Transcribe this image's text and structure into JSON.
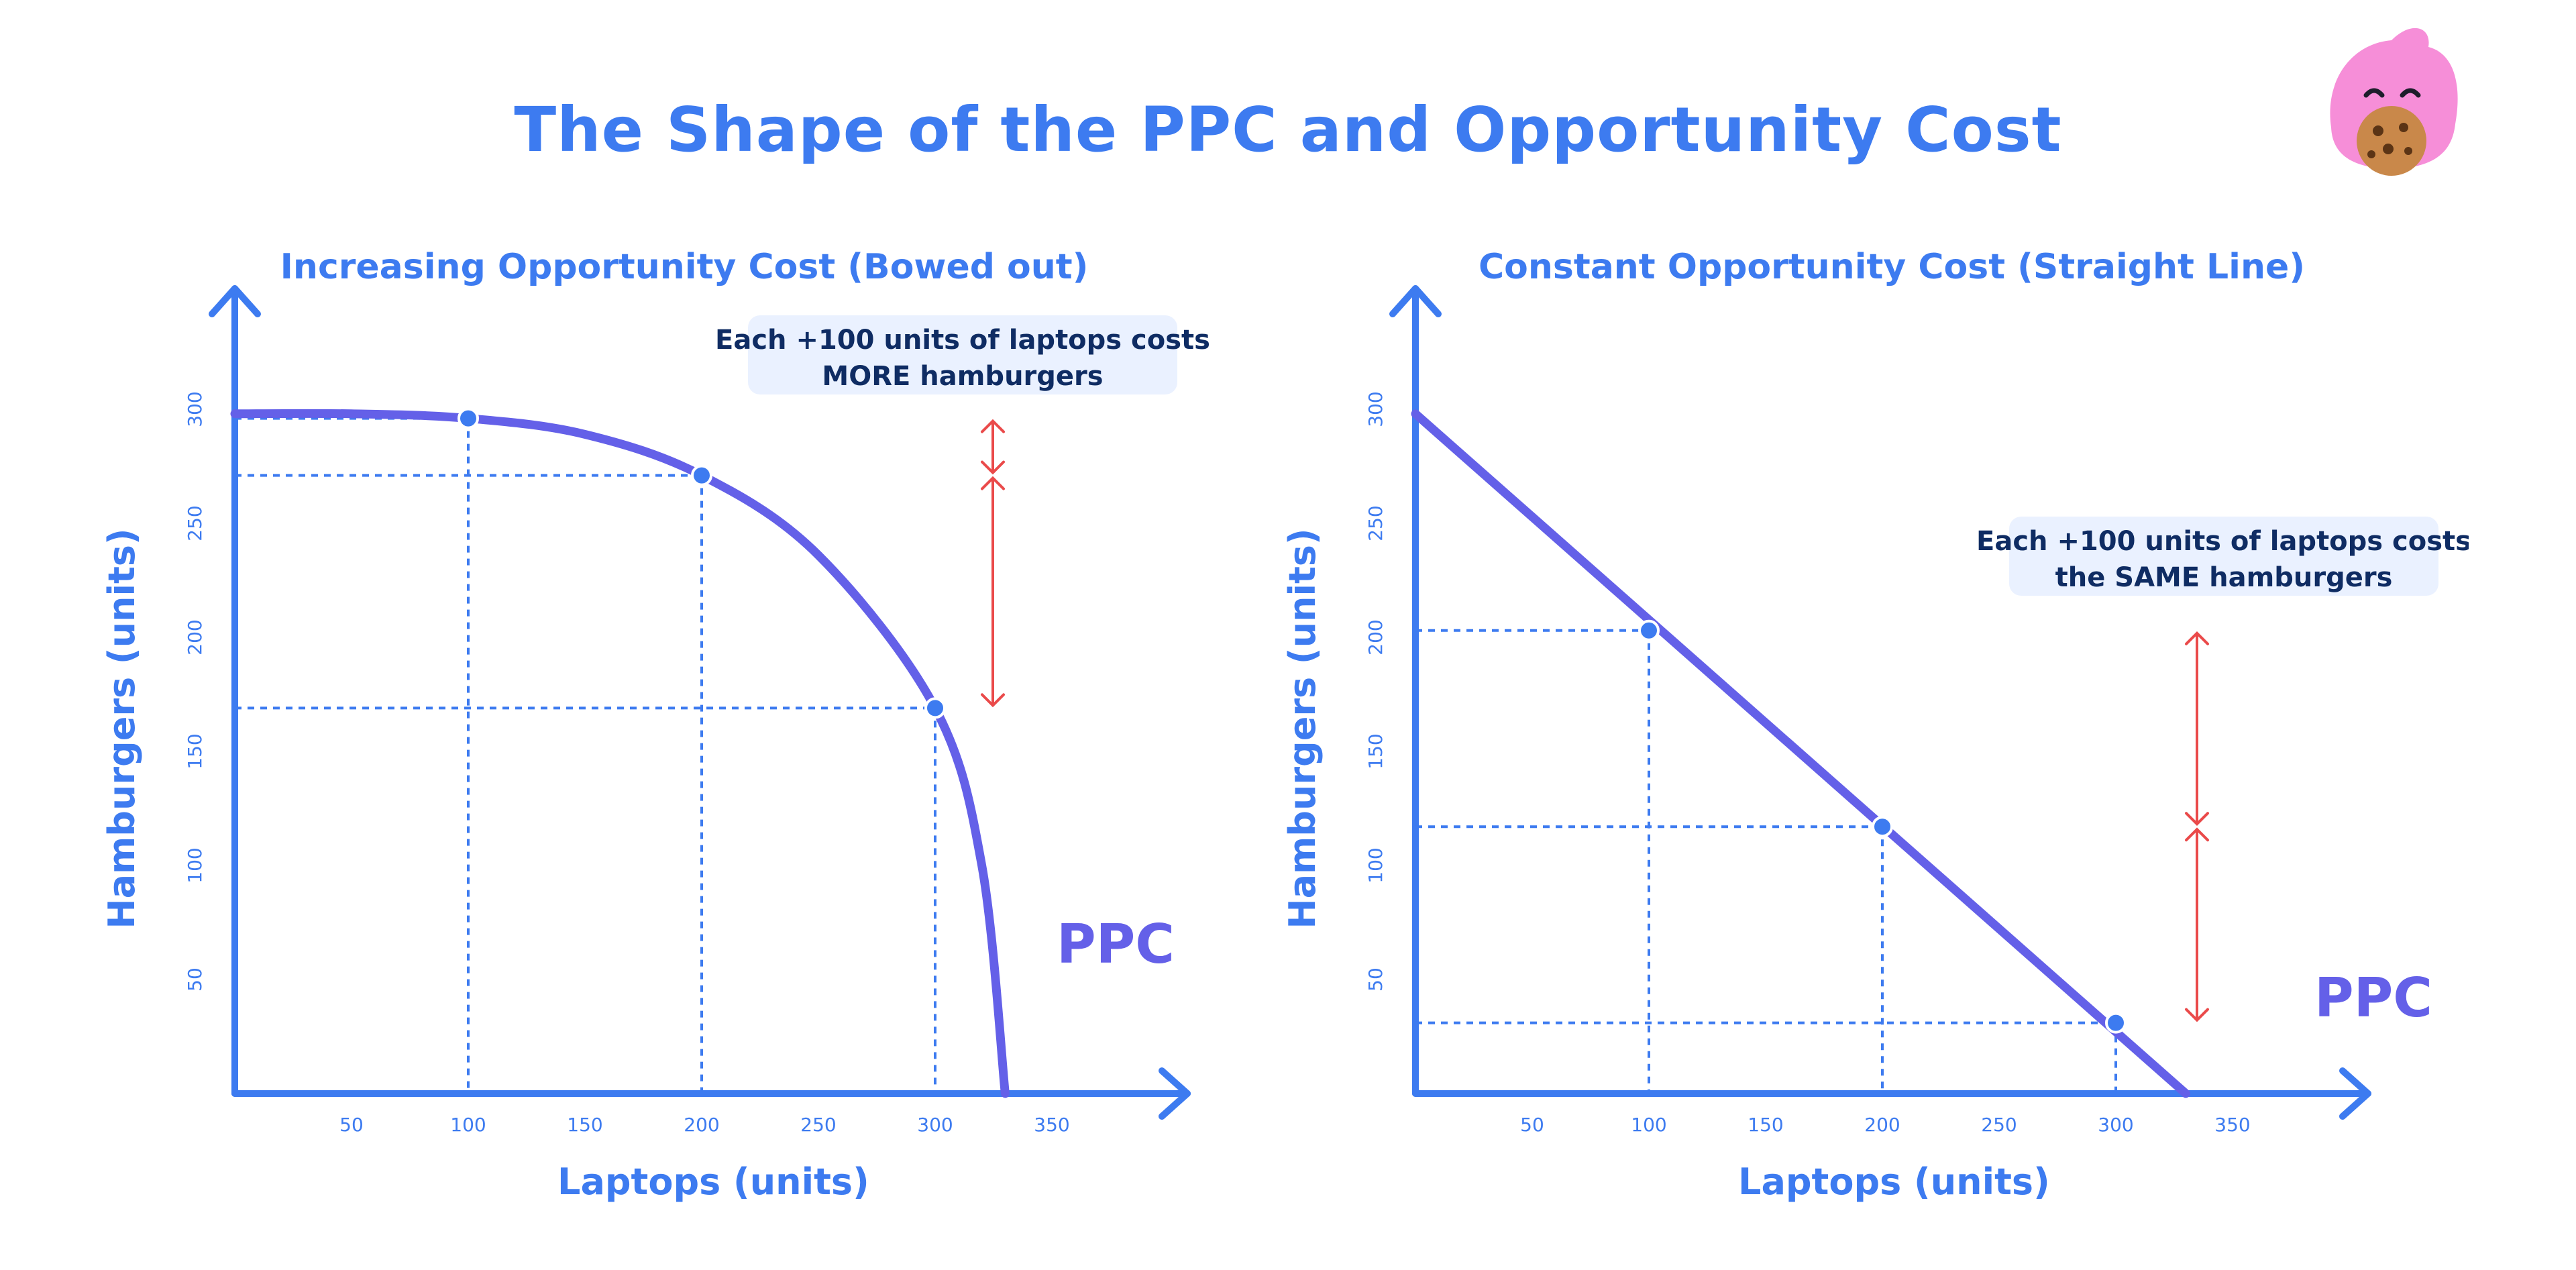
{
  "title": "The Shape of the PPC and Opportunity Cost",
  "colors": {
    "axis": "#3d7bf0",
    "curve": "#6460e8",
    "guide": "#3d7bf0",
    "arrow": "#ea4a4a",
    "annotation_text": "#0f2c63",
    "annotation_bg": "#eaf1ff",
    "mascot_pink": "#f68ed8",
    "cookie": "#c9884a"
  },
  "mascot": {
    "icon": "pink-mascot-eating-cookie"
  },
  "chart_data": [
    {
      "type": "line",
      "title": "Increasing Opportunity Cost (Bowed out)",
      "xlabel": "Laptops (units)",
      "ylabel": "Hamburgers (units)",
      "xlim": [
        0,
        400
      ],
      "ylim": [
        0,
        350
      ],
      "xticks": [
        50,
        100,
        150,
        200,
        250,
        300,
        350
      ],
      "yticks": [
        50,
        100,
        150,
        200,
        250,
        300
      ],
      "grid": false,
      "series": [
        {
          "name": "PPC",
          "x": [
            0,
            50,
            100,
            150,
            200,
            250,
            300,
            320,
            330
          ],
          "y": [
            298,
            298,
            296,
            289,
            271,
            236,
            169,
            100,
            0
          ]
        }
      ],
      "points": [
        {
          "x": 100,
          "y": 296
        },
        {
          "x": 200,
          "y": 271
        },
        {
          "x": 300,
          "y": 169
        }
      ],
      "annotation": {
        "line1": "Each +100 units of laptops costs",
        "line2_bold": "MORE",
        "line2_rest": " hamburgers"
      },
      "cost_arrows": [
        {
          "from": 296,
          "to": 271
        },
        {
          "from": 271,
          "to": 169
        }
      ],
      "curve_label": "PPC"
    },
    {
      "type": "line",
      "title": "Constant Opportunity Cost (Straight Line)",
      "xlabel": "Laptops (units)",
      "ylabel": "Hamburgers (units)",
      "xlim": [
        0,
        400
      ],
      "ylim": [
        0,
        350
      ],
      "xticks": [
        50,
        100,
        150,
        200,
        250,
        300,
        350
      ],
      "yticks": [
        50,
        100,
        150,
        200,
        250,
        300
      ],
      "grid": false,
      "series": [
        {
          "name": "PPC",
          "x": [
            0,
            330
          ],
          "y": [
            298,
            0
          ]
        }
      ],
      "points": [
        {
          "x": 100,
          "y": 203
        },
        {
          "x": 200,
          "y": 117
        },
        {
          "x": 300,
          "y": 31
        }
      ],
      "annotation": {
        "line1": "Each +100 units of laptops costs",
        "line2_pre": "the ",
        "line2_bold": "SAME",
        "line2_rest": " hamburgers"
      },
      "cost_arrows": [
        {
          "from": 203,
          "to": 117
        },
        {
          "from": 117,
          "to": 31
        }
      ],
      "curve_label": "PPC"
    }
  ]
}
